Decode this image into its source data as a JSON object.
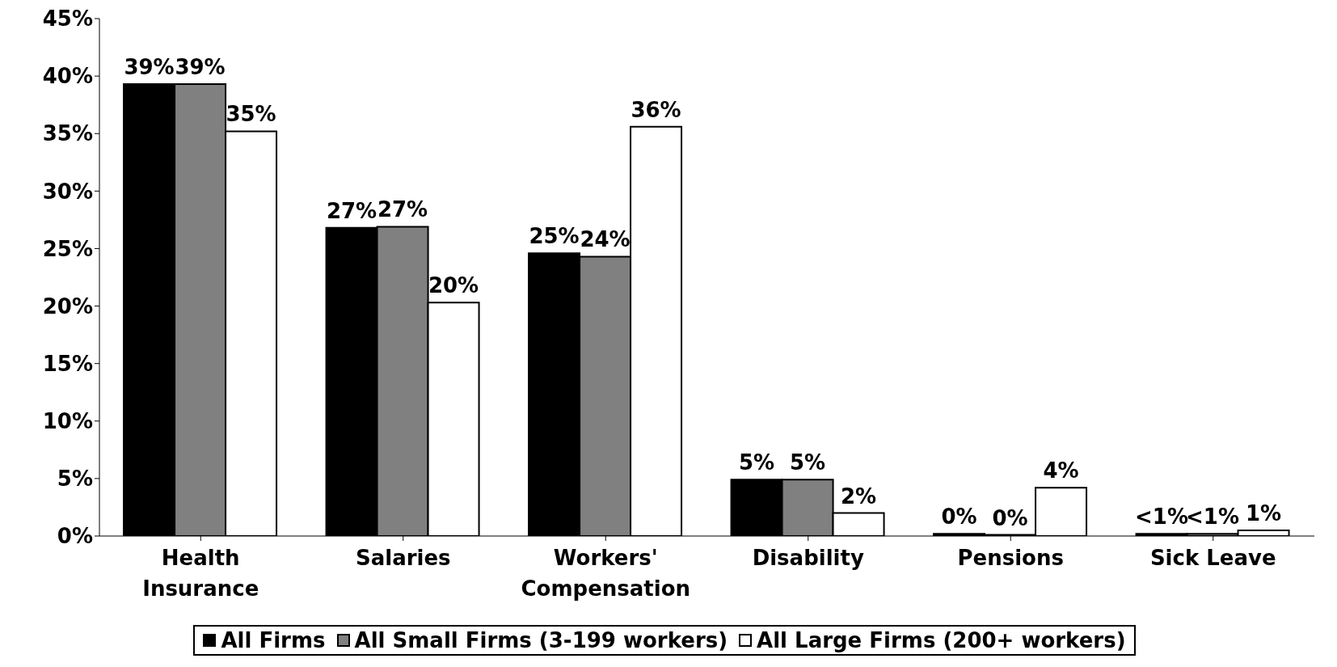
{
  "chart_data": {
    "type": "bar",
    "categories": [
      "Health\nInsurance",
      "Salaries",
      "Workers'\nCompensation",
      "Disability",
      "Pensions",
      "Sick Leave"
    ],
    "series": [
      {
        "name": "All Firms",
        "color": "#000000",
        "values": [
          39.3,
          26.8,
          24.6,
          4.9,
          0.2,
          0.2
        ],
        "value_labels": [
          "39%",
          "27%",
          "25%",
          "5%",
          "0%",
          "<1%"
        ]
      },
      {
        "name": "All Small Firms (3-199 workers)",
        "color": "#808080",
        "values": [
          39.3,
          26.9,
          24.3,
          4.9,
          0.1,
          0.2
        ],
        "value_labels": [
          "39%",
          "27%",
          "24%",
          "5%",
          "0%",
          "<1%"
        ]
      },
      {
        "name": "All Large Firms (200+ workers)",
        "color": "#ffffff",
        "values": [
          35.2,
          20.3,
          35.6,
          2.0,
          4.2,
          0.5
        ],
        "value_labels": [
          "35%",
          "20%",
          "36%",
          "2%",
          "4%",
          "1%"
        ]
      }
    ],
    "ylim": [
      0,
      45
    ],
    "yticks": [
      {
        "value": 0,
        "label": "0%"
      },
      {
        "value": 5,
        "label": "5%"
      },
      {
        "value": 10,
        "label": "10%"
      },
      {
        "value": 15,
        "label": "15%"
      },
      {
        "value": 20,
        "label": "20%"
      },
      {
        "value": 25,
        "label": "25%"
      },
      {
        "value": 30,
        "label": "30%"
      },
      {
        "value": 35,
        "label": "35%"
      },
      {
        "value": 40,
        "label": "40%"
      },
      {
        "value": 45,
        "label": "45%"
      }
    ],
    "grid": false,
    "legend": "bottom"
  }
}
